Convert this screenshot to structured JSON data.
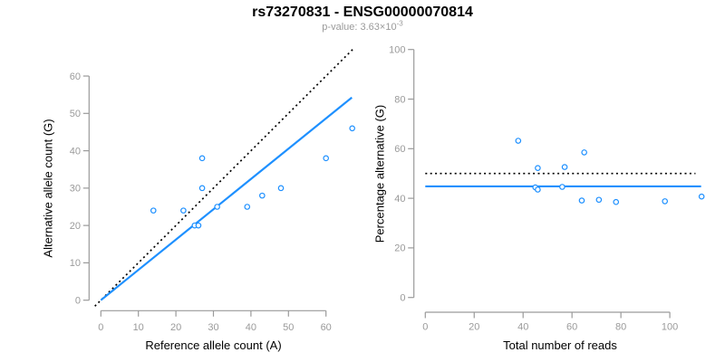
{
  "header": {
    "title": "rs73270831 - ENSG00000070814",
    "subtitle_base": "p-value: 3.63×10",
    "subtitle_exponent": "-3"
  },
  "colors": {
    "accent_blue": "#1E90FF",
    "reference_black": "#000000",
    "axis_gray": "#9a9a9a",
    "tick_label_gray": "#9a9a9a",
    "axis_title_black": "#000000",
    "subtitle_gray": "#9a9a9a",
    "background": "#ffffff"
  },
  "chart_data": [
    {
      "type": "scatter",
      "name": "allele-counts-scatter",
      "xlabel": "Reference allele count (A)",
      "ylabel": "Alternative allele count (G)",
      "xticks": [
        0,
        10,
        20,
        30,
        40,
        50,
        60
      ],
      "yticks": [
        0,
        10,
        20,
        30,
        40,
        50,
        60
      ],
      "xlim": [
        0,
        67
      ],
      "ylim": [
        0,
        67
      ],
      "grid": false,
      "legend": false,
      "marker": "open-circle",
      "marker_color": "#1E90FF",
      "points": [
        [
          14,
          24
        ],
        [
          22,
          24
        ],
        [
          25,
          20
        ],
        [
          26,
          20
        ],
        [
          27,
          30
        ],
        [
          27,
          38
        ],
        [
          31,
          25
        ],
        [
          39,
          25
        ],
        [
          43,
          28
        ],
        [
          48,
          30
        ],
        [
          60,
          38
        ],
        [
          67,
          46
        ]
      ],
      "lines": [
        {
          "name": "identity-reference-line",
          "slope": 1,
          "intercept": 0,
          "x_range": [
            -1.6,
            67.2
          ],
          "color": "#000000",
          "style": "dotted"
        },
        {
          "name": "regression-line",
          "slope": 0.811,
          "intercept": 0,
          "x_range": [
            0,
            66.9
          ],
          "color": "#1E90FF",
          "style": "solid"
        }
      ]
    },
    {
      "type": "scatter",
      "name": "percentage-vs-reads-scatter",
      "xlabel": "Total number of reads",
      "ylabel": "Percentage alternative (G)",
      "xticks": [
        0,
        20,
        40,
        60,
        80,
        100
      ],
      "yticks": [
        0,
        20,
        40,
        60,
        80,
        100
      ],
      "xlim": [
        0,
        113
      ],
      "ylim": [
        0,
        100
      ],
      "grid": false,
      "legend": false,
      "marker": "open-circle",
      "marker_color": "#1E90FF",
      "points": [
        [
          38,
          63.2
        ],
        [
          46,
          52.2
        ],
        [
          45,
          44.4
        ],
        [
          46,
          43.5
        ],
        [
          57,
          52.6
        ],
        [
          65,
          58.5
        ],
        [
          56,
          44.6
        ],
        [
          64,
          39.1
        ],
        [
          71,
          39.4
        ],
        [
          78,
          38.5
        ],
        [
          98,
          38.8
        ],
        [
          113,
          40.7
        ]
      ],
      "lines": [
        {
          "name": "expected-50-percent-line",
          "slope": 0,
          "intercept": 50,
          "x_range": [
            0,
            110.5
          ],
          "color": "#000000",
          "style": "dotted"
        },
        {
          "name": "mean-percentage-line",
          "slope": 0,
          "intercept": 44.8,
          "x_range": [
            0,
            112.8
          ],
          "color": "#1E90FF",
          "style": "solid"
        }
      ]
    }
  ]
}
